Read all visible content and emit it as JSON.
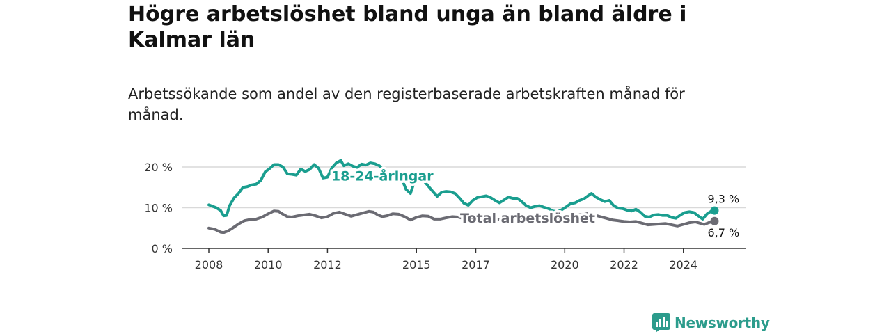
{
  "title": "Högre arbetslöshet bland unga än bland äldre i Kalmar län",
  "subtitle": "Arbetssökande som andel av den registerbaserade arbetskraften månad för månad.",
  "brand": {
    "name": "Newsworthy",
    "icon": "newsworthy-logo-icon",
    "color": "#2c9c8c"
  },
  "chart_data": {
    "type": "line",
    "title": "Högre arbetslöshet bland unga än bland äldre i Kalmar län",
    "subtitle": "Arbetssökande som andel av den registerbaserade arbetskraften månad för månad.",
    "xlabel": "",
    "ylabel": "",
    "x_range": [
      2008.0,
      2025.25
    ],
    "ylim": [
      0,
      20
    ],
    "y_ticks": [
      0,
      10,
      20
    ],
    "y_tick_labels": [
      "0 %",
      "10 %",
      "20 %"
    ],
    "x_ticks": [
      2008,
      2010,
      2012,
      2015,
      2017,
      2020,
      2022,
      2024
    ],
    "x_tick_labels": [
      "2008",
      "2010",
      "2012",
      "2015",
      "2017",
      "2020",
      "2022",
      "2024"
    ],
    "grid": {
      "horizontal": true,
      "vertical": false
    },
    "legend": "inline labels",
    "series": [
      {
        "name": "18-24-åringar",
        "color": "#1a9e8f",
        "end_label": "9,3 %",
        "points": [
          [
            2008.0,
            10.7
          ],
          [
            2008.25,
            10.0
          ],
          [
            2008.4,
            9.3
          ],
          [
            2008.5,
            8.0
          ],
          [
            2008.6,
            8.1
          ],
          [
            2008.7,
            10.5
          ],
          [
            2008.85,
            12.4
          ],
          [
            2009.0,
            13.5
          ],
          [
            2009.15,
            15.0
          ],
          [
            2009.3,
            15.2
          ],
          [
            2009.45,
            15.6
          ],
          [
            2009.6,
            15.8
          ],
          [
            2009.75,
            16.7
          ],
          [
            2009.9,
            18.8
          ],
          [
            2010.05,
            19.6
          ],
          [
            2010.2,
            20.6
          ],
          [
            2010.35,
            20.6
          ],
          [
            2010.5,
            20.0
          ],
          [
            2010.65,
            18.3
          ],
          [
            2010.8,
            18.2
          ],
          [
            2010.95,
            18.0
          ],
          [
            2011.1,
            19.5
          ],
          [
            2011.25,
            18.9
          ],
          [
            2011.4,
            19.4
          ],
          [
            2011.55,
            20.6
          ],
          [
            2011.7,
            19.7
          ],
          [
            2011.85,
            17.3
          ],
          [
            2012.0,
            17.5
          ],
          [
            2012.15,
            19.8
          ],
          [
            2012.3,
            21.0
          ],
          [
            2012.45,
            21.6
          ],
          [
            2012.55,
            20.3
          ],
          [
            2012.7,
            20.8
          ],
          [
            2012.85,
            20.2
          ],
          [
            2013.0,
            19.9
          ],
          [
            2013.15,
            20.7
          ],
          [
            2013.3,
            20.5
          ],
          [
            2013.45,
            21.0
          ],
          [
            2013.6,
            20.8
          ],
          [
            2013.75,
            20.3
          ],
          [
            2013.9,
            19.1
          ],
          [
            2014.05,
            17.1
          ],
          [
            2014.2,
            16.8
          ],
          [
            2014.35,
            17.5
          ],
          [
            2014.5,
            17.2
          ],
          [
            2014.65,
            14.5
          ],
          [
            2014.8,
            13.5
          ],
          [
            2014.95,
            16.8
          ],
          [
            2015.1,
            16.7
          ],
          [
            2015.25,
            16.6
          ],
          [
            2015.4,
            15.3
          ],
          [
            2015.55,
            14.0
          ],
          [
            2015.7,
            12.8
          ],
          [
            2015.85,
            13.8
          ],
          [
            2016.0,
            14.0
          ],
          [
            2016.15,
            13.9
          ],
          [
            2016.3,
            13.5
          ],
          [
            2016.45,
            12.4
          ],
          [
            2016.6,
            11.1
          ],
          [
            2016.75,
            10.6
          ],
          [
            2016.9,
            11.8
          ],
          [
            2017.05,
            12.5
          ],
          [
            2017.2,
            12.7
          ],
          [
            2017.35,
            12.9
          ],
          [
            2017.5,
            12.5
          ],
          [
            2017.65,
            11.8
          ],
          [
            2017.8,
            11.2
          ],
          [
            2017.95,
            11.9
          ],
          [
            2018.1,
            12.6
          ],
          [
            2018.25,
            12.3
          ],
          [
            2018.4,
            12.3
          ],
          [
            2018.55,
            11.5
          ],
          [
            2018.7,
            10.5
          ],
          [
            2018.85,
            10.0
          ],
          [
            2019.0,
            10.3
          ],
          [
            2019.15,
            10.5
          ],
          [
            2019.3,
            10.1
          ],
          [
            2019.45,
            9.8
          ],
          [
            2019.6,
            9.2
          ],
          [
            2019.75,
            9.0
          ],
          [
            2019.9,
            9.5
          ],
          [
            2020.05,
            10.2
          ],
          [
            2020.2,
            11.0
          ],
          [
            2020.35,
            11.2
          ],
          [
            2020.5,
            11.8
          ],
          [
            2020.65,
            12.2
          ],
          [
            2020.8,
            13.0
          ],
          [
            2020.9,
            13.5
          ],
          [
            2021.05,
            12.6
          ],
          [
            2021.2,
            12.0
          ],
          [
            2021.35,
            11.5
          ],
          [
            2021.5,
            11.8
          ],
          [
            2021.65,
            10.5
          ],
          [
            2021.8,
            9.9
          ],
          [
            2021.95,
            9.8
          ],
          [
            2022.1,
            9.4
          ],
          [
            2022.25,
            9.2
          ],
          [
            2022.4,
            9.6
          ],
          [
            2022.55,
            8.9
          ],
          [
            2022.7,
            7.9
          ],
          [
            2022.85,
            7.7
          ],
          [
            2023.0,
            8.2
          ],
          [
            2023.15,
            8.3
          ],
          [
            2023.3,
            8.1
          ],
          [
            2023.45,
            8.1
          ],
          [
            2023.6,
            7.6
          ],
          [
            2023.75,
            7.4
          ],
          [
            2023.9,
            8.2
          ],
          [
            2024.05,
            8.8
          ],
          [
            2024.2,
            9.0
          ],
          [
            2024.35,
            8.8
          ],
          [
            2024.5,
            8.0
          ],
          [
            2024.65,
            7.2
          ],
          [
            2024.8,
            8.5
          ],
          [
            2024.95,
            9.2
          ],
          [
            2025.05,
            9.3
          ]
        ]
      },
      {
        "name": "Total arbetslöshet",
        "color": "#6b6b73",
        "end_label": "6,7 %",
        "points": [
          [
            2008.0,
            5.0
          ],
          [
            2008.2,
            4.7
          ],
          [
            2008.4,
            4.0
          ],
          [
            2008.5,
            3.9
          ],
          [
            2008.65,
            4.3
          ],
          [
            2008.8,
            5.0
          ],
          [
            2009.0,
            6.0
          ],
          [
            2009.2,
            6.8
          ],
          [
            2009.4,
            7.1
          ],
          [
            2009.6,
            7.2
          ],
          [
            2009.8,
            7.7
          ],
          [
            2010.0,
            8.5
          ],
          [
            2010.2,
            9.2
          ],
          [
            2010.35,
            9.1
          ],
          [
            2010.5,
            8.4
          ],
          [
            2010.65,
            7.8
          ],
          [
            2010.8,
            7.7
          ],
          [
            2011.0,
            8.0
          ],
          [
            2011.2,
            8.2
          ],
          [
            2011.4,
            8.4
          ],
          [
            2011.6,
            8.0
          ],
          [
            2011.8,
            7.5
          ],
          [
            2012.0,
            7.8
          ],
          [
            2012.2,
            8.6
          ],
          [
            2012.4,
            8.9
          ],
          [
            2012.6,
            8.4
          ],
          [
            2012.8,
            7.9
          ],
          [
            2013.0,
            8.3
          ],
          [
            2013.2,
            8.7
          ],
          [
            2013.4,
            9.1
          ],
          [
            2013.55,
            8.9
          ],
          [
            2013.7,
            8.2
          ],
          [
            2013.85,
            7.8
          ],
          [
            2014.0,
            8.0
          ],
          [
            2014.2,
            8.5
          ],
          [
            2014.4,
            8.4
          ],
          [
            2014.6,
            7.8
          ],
          [
            2014.8,
            7.0
          ],
          [
            2015.0,
            7.6
          ],
          [
            2015.2,
            8.0
          ],
          [
            2015.4,
            7.9
          ],
          [
            2015.6,
            7.2
          ],
          [
            2015.8,
            7.2
          ],
          [
            2016.0,
            7.5
          ],
          [
            2016.2,
            7.8
          ],
          [
            2016.4,
            7.7
          ],
          [
            2016.6,
            7.3
          ],
          [
            2016.8,
            7.0
          ],
          [
            2017.0,
            7.5
          ],
          [
            2017.2,
            7.9
          ],
          [
            2017.4,
            7.8
          ],
          [
            2017.6,
            7.3
          ],
          [
            2017.8,
            7.0
          ],
          [
            2018.0,
            7.4
          ],
          [
            2018.2,
            7.7
          ],
          [
            2018.4,
            7.5
          ],
          [
            2018.6,
            7.0
          ],
          [
            2018.8,
            6.9
          ],
          [
            2019.0,
            7.1
          ],
          [
            2019.2,
            7.4
          ],
          [
            2019.4,
            7.3
          ],
          [
            2019.6,
            7.0
          ],
          [
            2019.8,
            7.0
          ],
          [
            2020.0,
            7.6
          ],
          [
            2020.2,
            8.1
          ],
          [
            2020.4,
            8.2
          ],
          [
            2020.6,
            8.3
          ],
          [
            2020.8,
            8.6
          ],
          [
            2021.0,
            8.2
          ],
          [
            2021.2,
            7.8
          ],
          [
            2021.4,
            7.4
          ],
          [
            2021.6,
            7.0
          ],
          [
            2021.8,
            6.8
          ],
          [
            2022.0,
            6.6
          ],
          [
            2022.2,
            6.5
          ],
          [
            2022.4,
            6.6
          ],
          [
            2022.6,
            6.2
          ],
          [
            2022.8,
            5.8
          ],
          [
            2023.0,
            5.9
          ],
          [
            2023.2,
            6.0
          ],
          [
            2023.4,
            6.1
          ],
          [
            2023.6,
            5.8
          ],
          [
            2023.8,
            5.5
          ],
          [
            2024.0,
            5.9
          ],
          [
            2024.2,
            6.3
          ],
          [
            2024.4,
            6.5
          ],
          [
            2024.55,
            6.2
          ],
          [
            2024.7,
            5.9
          ],
          [
            2024.85,
            6.3
          ],
          [
            2025.05,
            6.7
          ]
        ]
      }
    ],
    "annotations": [
      {
        "text": "18-24-åringar",
        "series": "18-24-åringar",
        "at_x": 2013.85,
        "at_y": 17.9
      },
      {
        "text": "Total arbetslöshet",
        "series": "Total arbetslöshet",
        "at_x": 2018.75,
        "at_y": 7.5
      }
    ]
  }
}
